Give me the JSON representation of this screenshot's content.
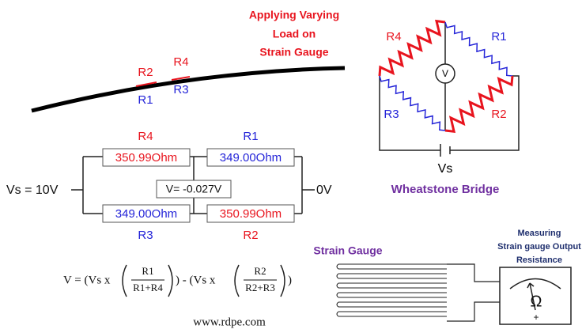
{
  "load_label": {
    "lines": [
      "Applying Varying",
      "Load on",
      "Strain Gauge"
    ]
  },
  "beam": {
    "labels": [
      "R2",
      "R4",
      "R1",
      "R3"
    ]
  },
  "bridge": {
    "r4": "R4",
    "r1": "R1",
    "r3": "R3",
    "r2": "R2",
    "meter": "V",
    "source": "Vs",
    "title": "Wheatstone Bridge"
  },
  "circuit": {
    "top_labels": [
      "R4",
      "R1"
    ],
    "top_values": [
      "350.99Ohm",
      "349.00Ohm"
    ],
    "voltage": "V= -0.027V",
    "bottom_values": [
      "349.00Ohm",
      "350.99Ohm"
    ],
    "bottom_labels": [
      "R3",
      "R2"
    ],
    "input": "Vs = 10V",
    "output": "0V"
  },
  "formula": {
    "lhs": "V = (Vs x",
    "frac1_num": "R1",
    "frac1_den": "R1+R4",
    "mid": ") - (Vs x",
    "frac2_num": "R2",
    "frac2_den": "R2+R3",
    "end": ")"
  },
  "footer": "www.rdpe.com",
  "strain_gauge": {
    "title": "Strain Gauge",
    "meter_lines": [
      "Measuring",
      "Strain gauge Output",
      "Resistance"
    ],
    "symbol": "Ω"
  }
}
